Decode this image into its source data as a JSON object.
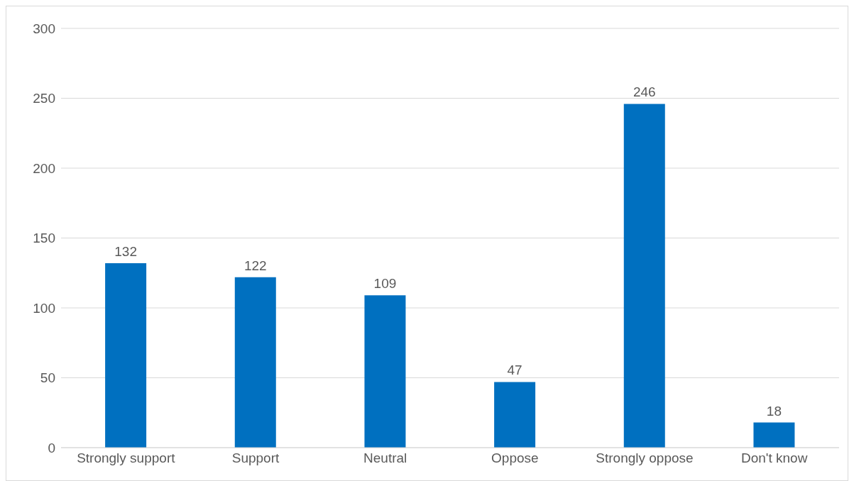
{
  "chart_data": {
    "type": "bar",
    "categories": [
      "Strongly support",
      "Support",
      "Neutral",
      "Oppose",
      "Strongly oppose",
      "Don't know"
    ],
    "values": [
      132,
      122,
      109,
      47,
      246,
      18
    ],
    "color": "#0070c0",
    "ylim": [
      0,
      300
    ],
    "yticks": [
      0,
      50,
      100,
      150,
      200,
      250,
      300
    ],
    "grid": "y",
    "data_labels": true,
    "legend": false
  }
}
